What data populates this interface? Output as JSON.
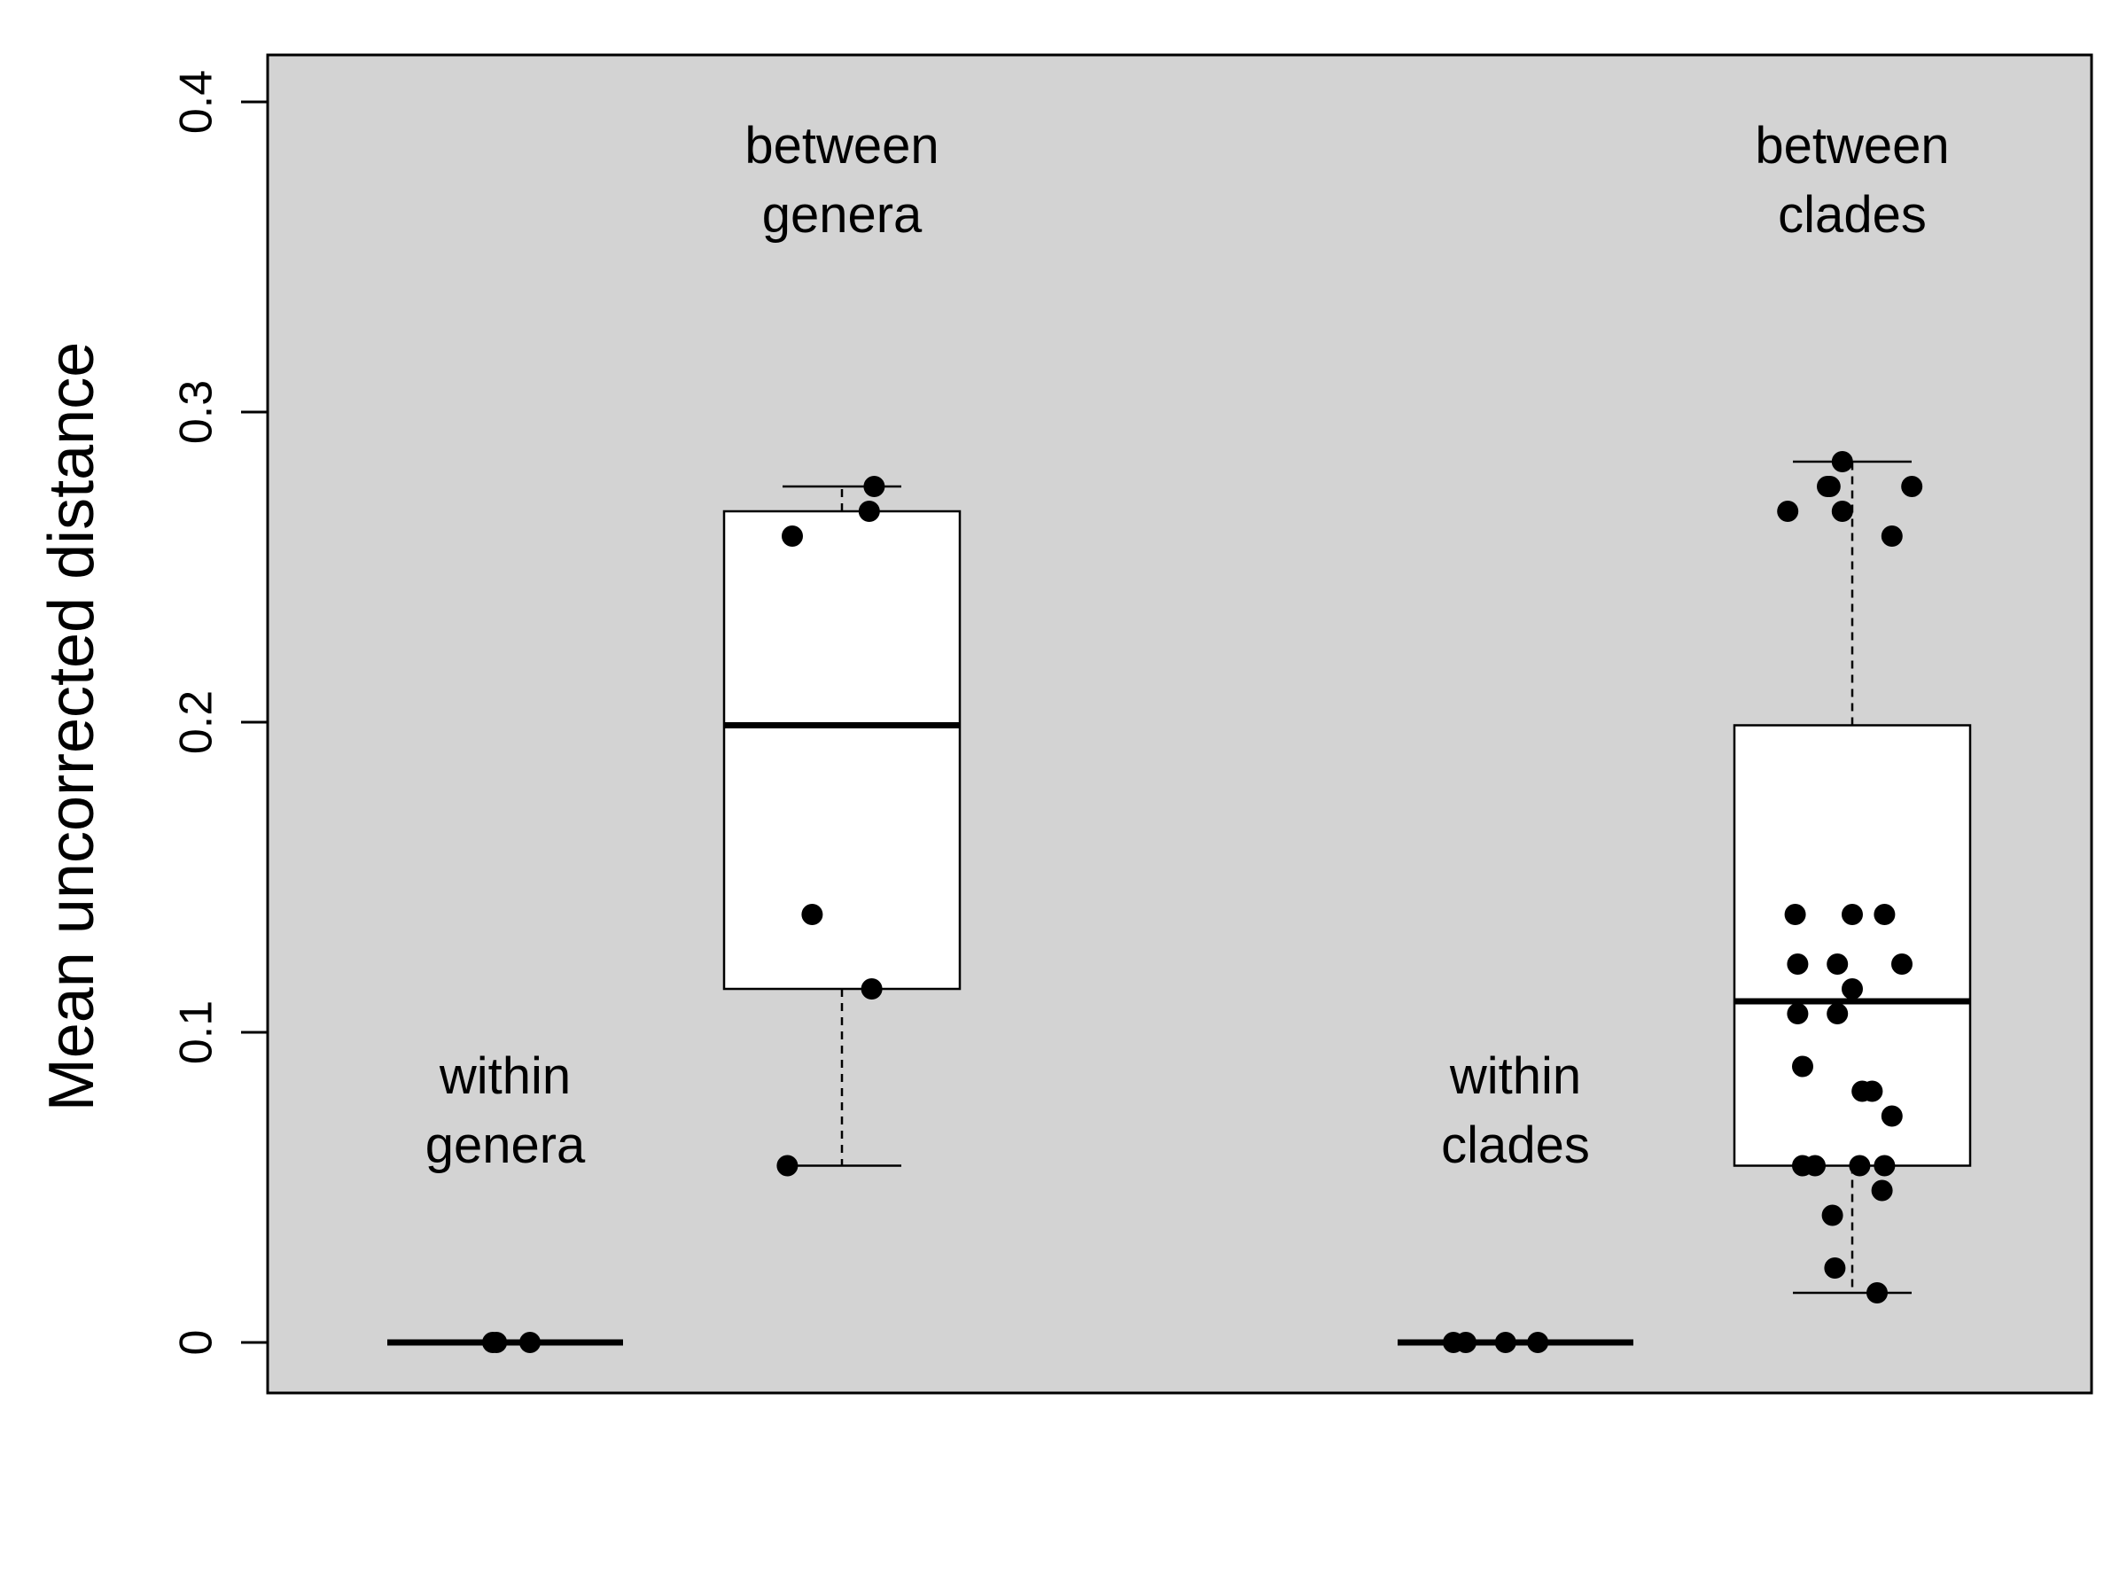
{
  "chart_data": {
    "type": "box",
    "title": "",
    "xlabel": "",
    "ylabel": "Mean uncorrected distance",
    "ylim": [
      0,
      0.4
    ],
    "y_ticks": [
      {
        "value": 0,
        "label": "0"
      },
      {
        "value": 0.1,
        "label": "0.1"
      },
      {
        "value": 0.2,
        "label": "0.2"
      },
      {
        "value": 0.3,
        "label": "0.3"
      },
      {
        "value": 0.4,
        "label": "0.4"
      }
    ],
    "plot_background": "#d3d3d3",
    "box_fill": "#ffffff",
    "point_color": "#000000",
    "groups": [
      {
        "label_lines": [
          "within",
          "genera"
        ],
        "label_y": 0.058,
        "stats": {
          "lower_whisker": 0,
          "q1": 0,
          "median": 0,
          "q3": 0,
          "upper_whisker": 0
        },
        "points": [
          {
            "x": -0.05,
            "y": 0
          },
          {
            "x": -0.035,
            "y": 0
          },
          {
            "x": 0.1,
            "y": 0
          }
        ]
      },
      {
        "label_lines": [
          "between",
          "genera"
        ],
        "label_y": 0.358,
        "stats": {
          "lower_whisker": 0.057,
          "q1": 0.114,
          "median": 0.199,
          "q3": 0.268,
          "upper_whisker": 0.276
        },
        "points": [
          {
            "x": -0.22,
            "y": 0.057
          },
          {
            "x": 0.12,
            "y": 0.114
          },
          {
            "x": -0.12,
            "y": 0.138
          },
          {
            "x": -0.2,
            "y": 0.26
          },
          {
            "x": 0.11,
            "y": 0.268
          },
          {
            "x": 0.13,
            "y": 0.276
          }
        ]
      },
      {
        "label_lines": [
          "within",
          "clades"
        ],
        "label_y": 0.058,
        "stats": {
          "lower_whisker": 0,
          "q1": 0,
          "median": 0,
          "q3": 0,
          "upper_whisker": 0
        },
        "points": [
          {
            "x": -0.25,
            "y": 0
          },
          {
            "x": -0.2,
            "y": 0
          },
          {
            "x": -0.04,
            "y": 0
          },
          {
            "x": 0.09,
            "y": 0
          }
        ]
      },
      {
        "label_lines": [
          "between",
          "clades"
        ],
        "label_y": 0.358,
        "stats": {
          "lower_whisker": 0.016,
          "q1": 0.057,
          "median": 0.11,
          "q3": 0.199,
          "upper_whisker": 0.284
        },
        "points": [
          {
            "x": 0.1,
            "y": 0.016
          },
          {
            "x": -0.07,
            "y": 0.024
          },
          {
            "x": -0.08,
            "y": 0.041
          },
          {
            "x": 0.12,
            "y": 0.049
          },
          {
            "x": -0.2,
            "y": 0.057
          },
          {
            "x": -0.15,
            "y": 0.057
          },
          {
            "x": 0.03,
            "y": 0.057
          },
          {
            "x": 0.13,
            "y": 0.057
          },
          {
            "x": 0.16,
            "y": 0.073
          },
          {
            "x": 0.04,
            "y": 0.081
          },
          {
            "x": 0.08,
            "y": 0.081
          },
          {
            "x": -0.2,
            "y": 0.089
          },
          {
            "x": -0.22,
            "y": 0.106
          },
          {
            "x": -0.06,
            "y": 0.106
          },
          {
            "x": 0.0,
            "y": 0.114
          },
          {
            "x": -0.22,
            "y": 0.122
          },
          {
            "x": -0.06,
            "y": 0.122
          },
          {
            "x": 0.2,
            "y": 0.122
          },
          {
            "x": -0.23,
            "y": 0.138
          },
          {
            "x": 0.0,
            "y": 0.138
          },
          {
            "x": 0.13,
            "y": 0.138
          },
          {
            "x": 0.16,
            "y": 0.26
          },
          {
            "x": -0.26,
            "y": 0.268
          },
          {
            "x": -0.04,
            "y": 0.268
          },
          {
            "x": -0.09,
            "y": 0.276
          },
          {
            "x": -0.1,
            "y": 0.276
          },
          {
            "x": 0.24,
            "y": 0.276
          },
          {
            "x": -0.04,
            "y": 0.284
          }
        ]
      }
    ]
  }
}
